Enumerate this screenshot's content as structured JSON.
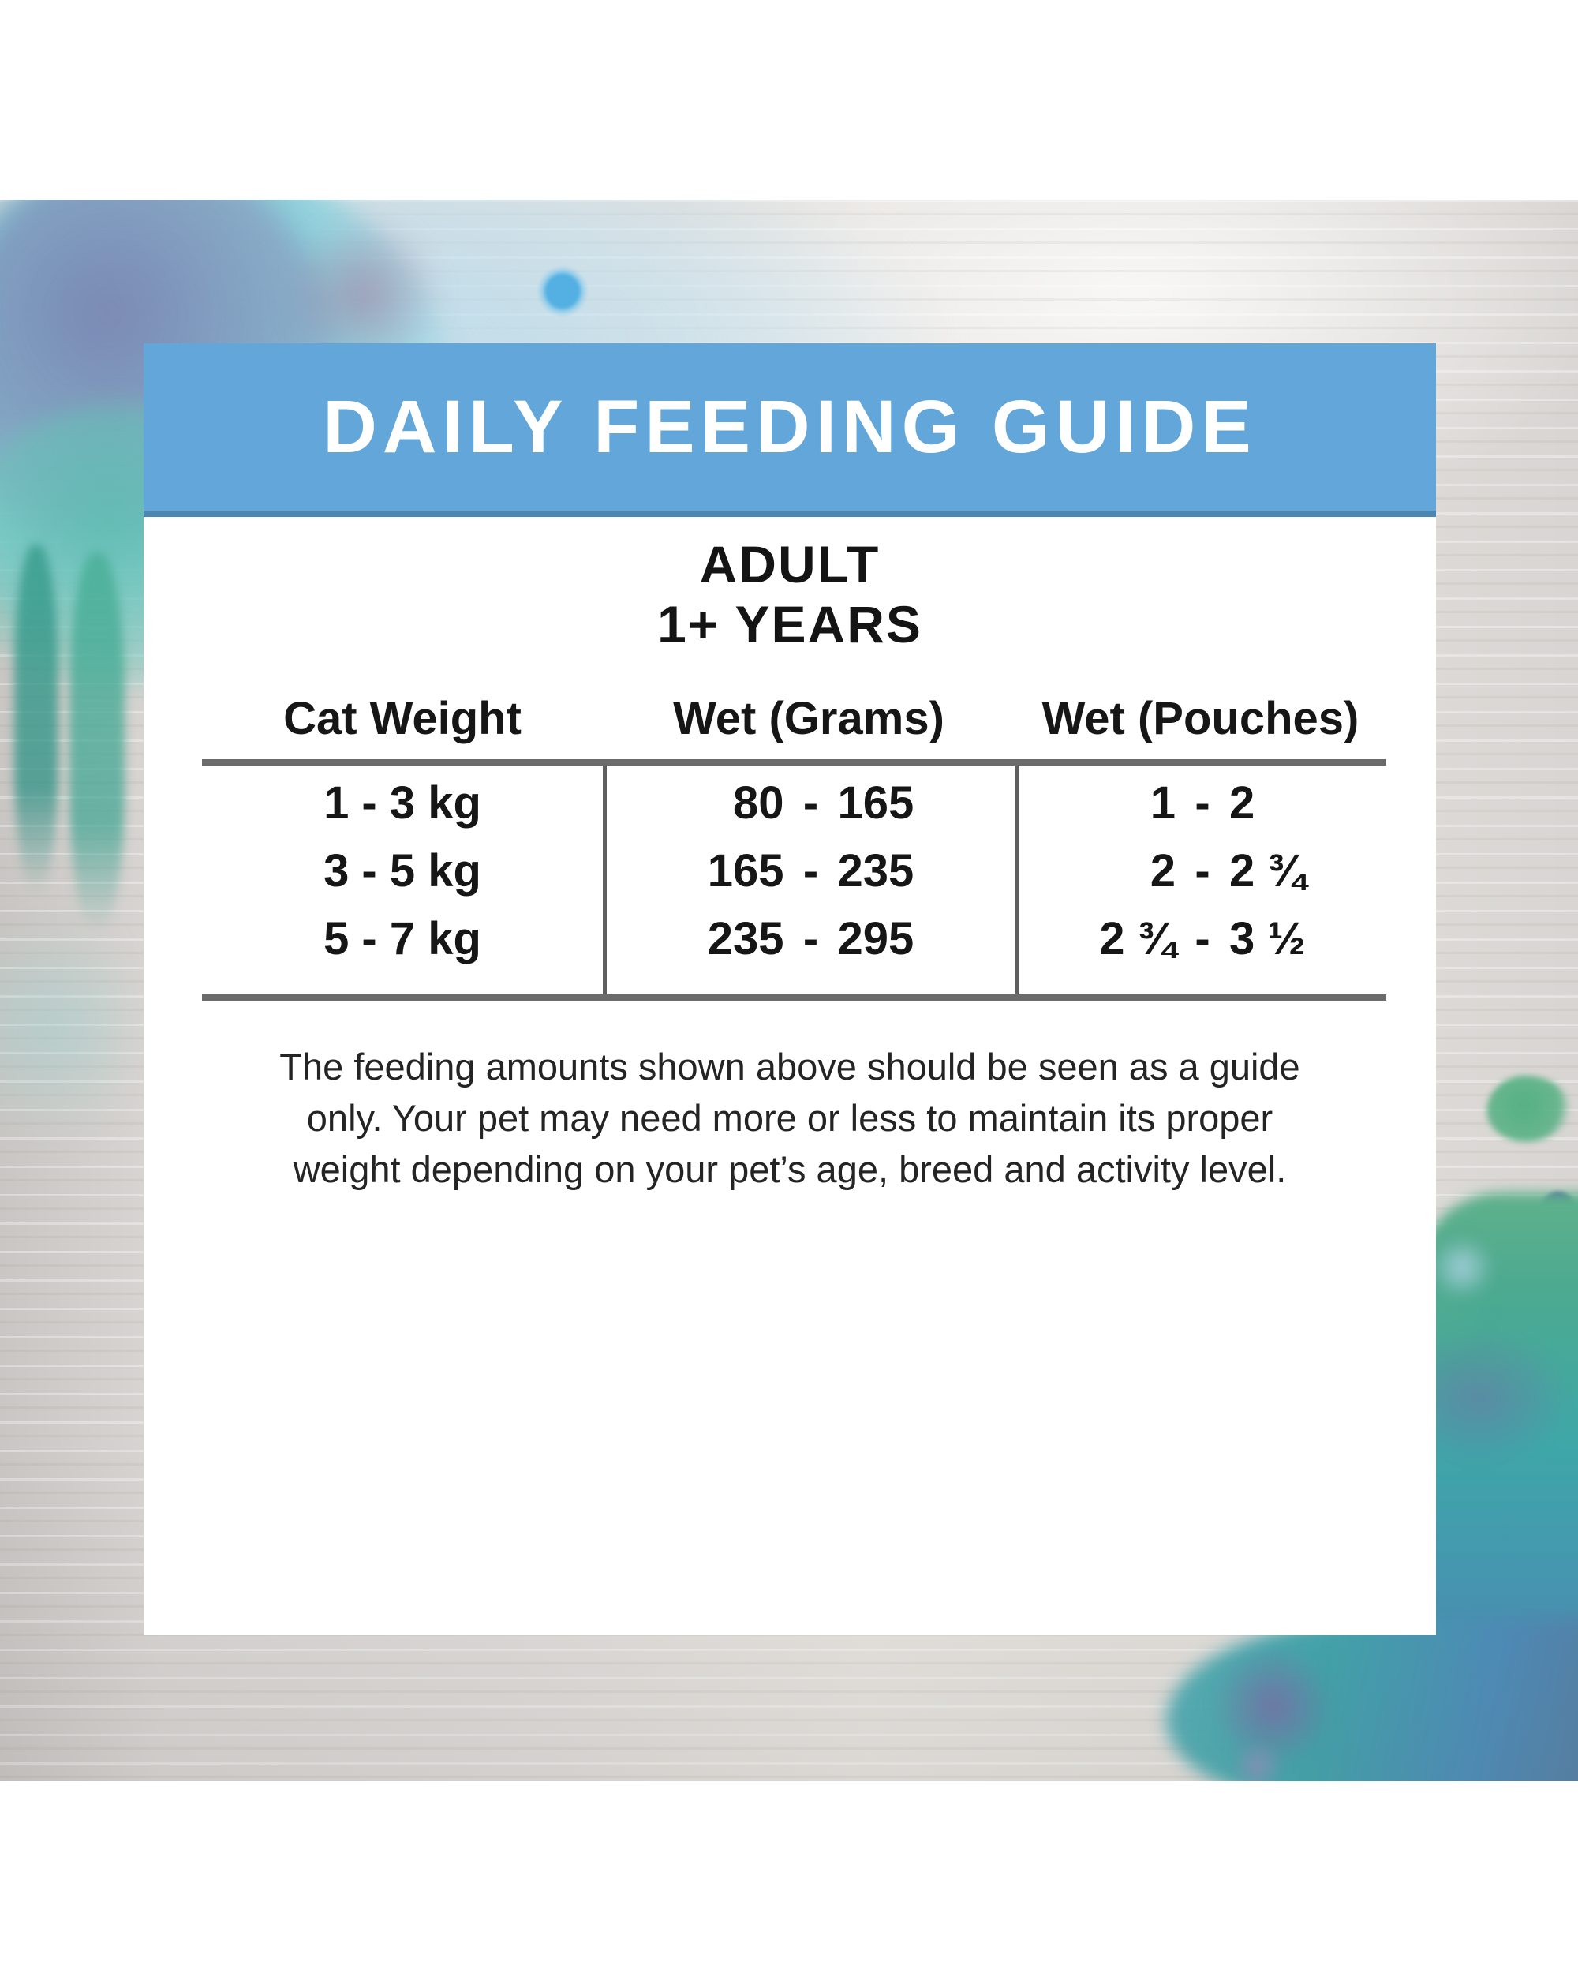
{
  "header": {
    "title": "DAILY FEEDING GUIDE"
  },
  "life_stage": {
    "line1": "ADULT",
    "line2": "1+ YEARS"
  },
  "feeding_table": {
    "columns": [
      "Cat Weight",
      "Wet (Grams)",
      "Wet (Pouches)"
    ],
    "dash": "-",
    "rows": [
      {
        "weight": "1 - 3 kg",
        "grams": {
          "min": "80",
          "max": "165"
        },
        "pouches": {
          "min": "1",
          "max": "2"
        }
      },
      {
        "weight": "3 - 5 kg",
        "grams": {
          "min": "165",
          "max": "235"
        },
        "pouches": {
          "min": "2",
          "max": "2 ¾"
        }
      },
      {
        "weight": "5 - 7 kg",
        "grams": {
          "min": "235",
          "max": "295"
        },
        "pouches": {
          "min": "2 ¾",
          "max": "3 ½"
        }
      }
    ]
  },
  "disclaimer": {
    "lines": [
      "The feeding amounts shown above should be seen as a guide",
      "only. Your pet may need more or less to maintain its proper",
      "weight depending on your pet’s age, breed and activity level."
    ]
  },
  "colors": {
    "header_bar": "#63a7da",
    "header_bar_border": "#4d86b0",
    "table_line": "#6b6b6b",
    "text": "#1b1b1b",
    "wood_background": "#dedbd8",
    "watercolor_teal": "#52bdb0",
    "watercolor_blue": "#aedcf0",
    "watercolor_purple": "#9784b8",
    "watercolor_green": "#55b083"
  }
}
